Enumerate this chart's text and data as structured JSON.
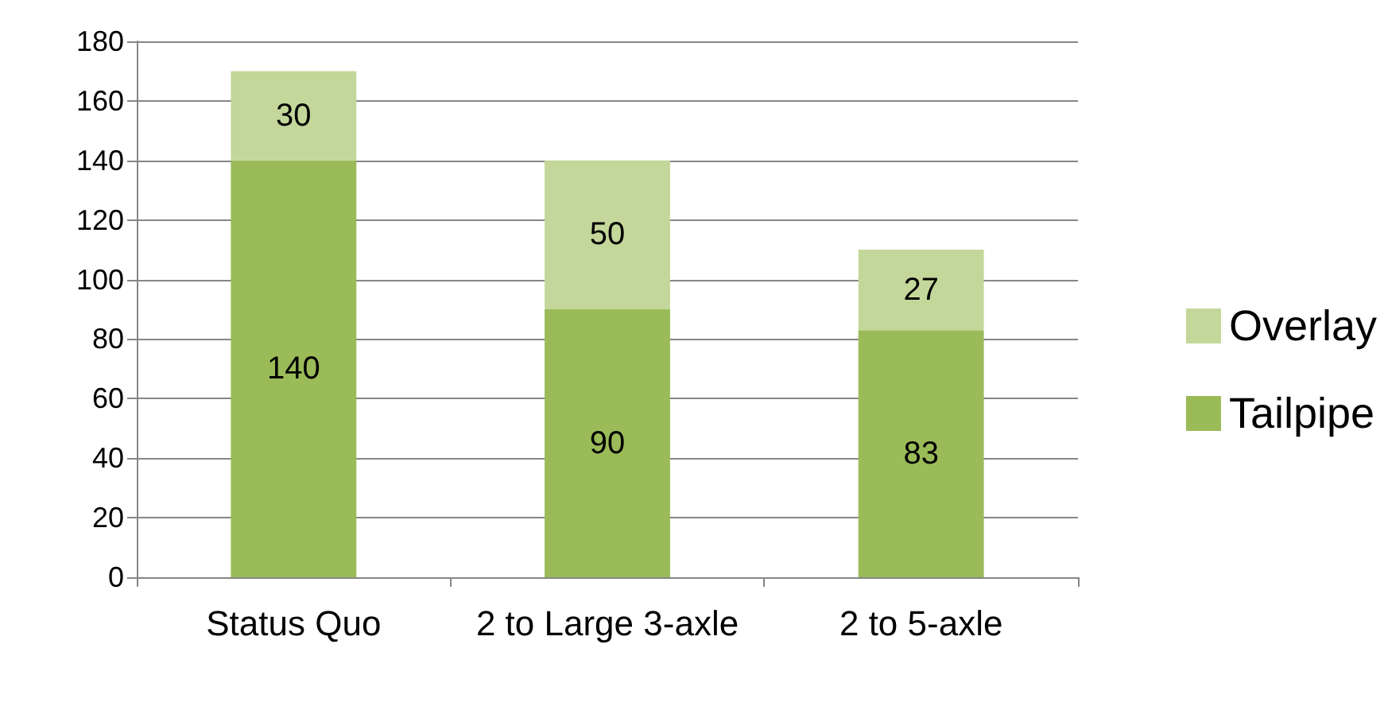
{
  "chart_data": {
    "type": "bar",
    "stacked": true,
    "categories": [
      "Status Quo",
      "2 to Large 3-axle",
      "2 to 5-axle"
    ],
    "series": [
      {
        "name": "Tailpipe",
        "color": "#9bbb59",
        "values": [
          140,
          90,
          83
        ]
      },
      {
        "name": "Overlay",
        "color": "#c4d79b",
        "values": [
          30,
          50,
          27
        ]
      }
    ],
    "ylim": [
      0,
      180
    ],
    "yticks": [
      0,
      20,
      40,
      60,
      80,
      100,
      120,
      140,
      160,
      180
    ],
    "grid": "y",
    "legend": "right",
    "data_labels": true
  }
}
